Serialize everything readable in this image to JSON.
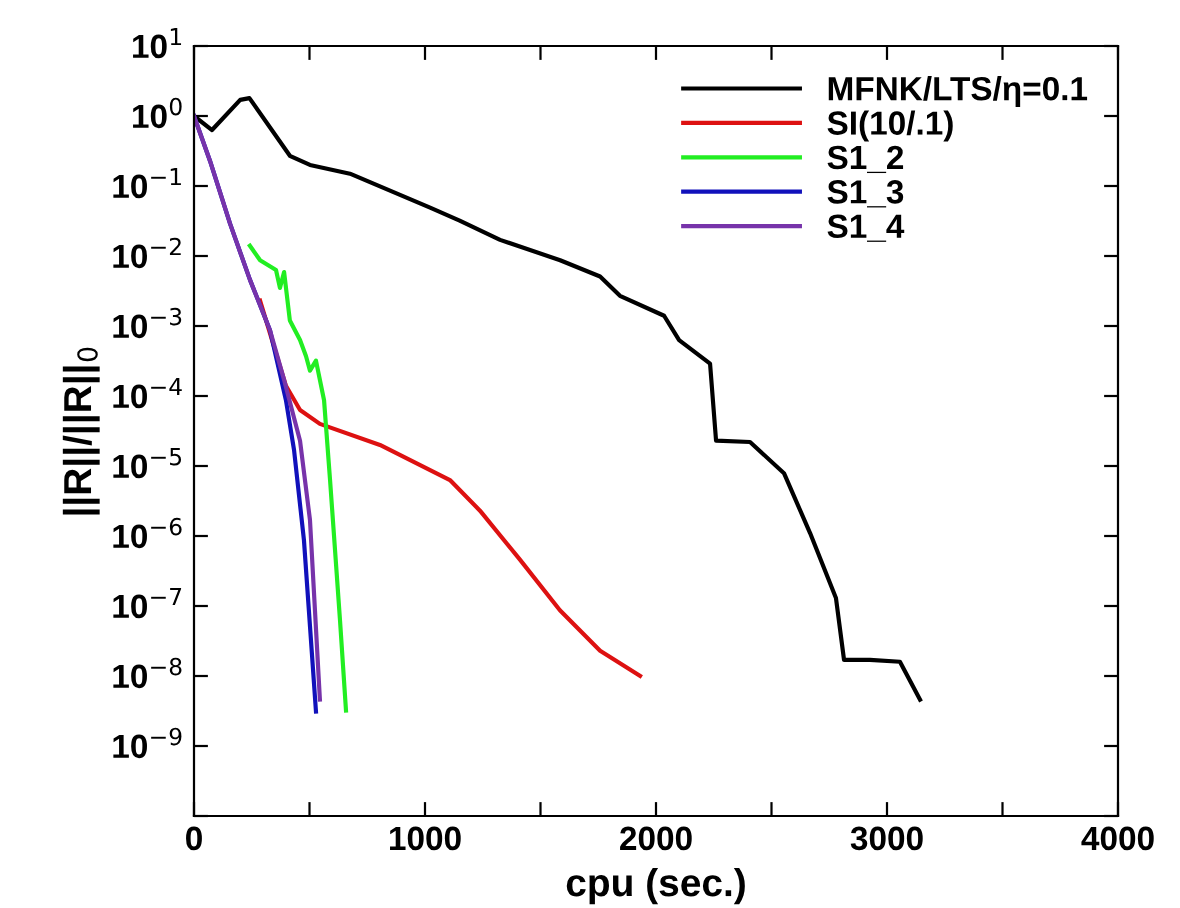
{
  "chart_data": {
    "type": "line",
    "xlabel": "cpu (sec.)",
    "ylabel": "||R||/||R||$_{0}$",
    "log": "y",
    "legend": "top right",
    "grid": false,
    "line_style": "solid",
    "marker": "none",
    "xlim": [
      0,
      4000
    ],
    "xticks": [
      0,
      {
        "value": 500,
        "label": null
      },
      1000,
      {
        "value": 1500,
        "label": null
      },
      2000,
      {
        "value": 2500,
        "label": null
      },
      3000,
      {
        "value": 3500,
        "label": null
      },
      4000
    ],
    "ylim": [
      1e-10,
      10
    ],
    "yticks": [
      {
        "value": 1e-10,
        "label": null
      },
      {
        "value": 1e-09,
        "label": "10$^{−9}$"
      },
      {
        "value": 1e-08,
        "label": "10$^{−8}$"
      },
      {
        "value": 1e-07,
        "label": "10$^{−7}$"
      },
      {
        "value": 1e-06,
        "label": "10$^{−6}$"
      },
      {
        "value": 1e-05,
        "label": "10$^{−5}$"
      },
      {
        "value": 0.0001,
        "label": "10$^{−4}$"
      },
      {
        "value": 0.001,
        "label": "10$^{−3}$"
      },
      {
        "value": 0.01,
        "label": "10$^{−2}$"
      },
      {
        "value": 0.1,
        "label": "10$^{−1}$"
      },
      {
        "value": 1,
        "label": "10$^{0}$"
      },
      {
        "value": 10,
        "label": "10$^{1}$"
      }
    ],
    "series": [
      {
        "name": "MFNK/LTS/η=0.1",
        "color": "#000000",
        "x": [
          0,
          78,
          200,
          240,
          415,
          502,
          675,
          1022,
          1150,
          1325,
          1585,
          1758,
          1844,
          2035,
          2100,
          2234,
          2260,
          2407,
          2554,
          2667,
          2779,
          2814,
          2926,
          3056,
          3143
        ],
        "values": [
          1,
          0.63,
          1.7,
          1.8,
          0.27,
          0.2,
          0.15,
          0.049,
          0.032,
          0.017,
          0.0087,
          0.0051,
          0.0027,
          0.0014,
          0.00063,
          0.00029,
          2.3e-05,
          2.2e-05,
          7.9e-06,
          1.1e-06,
          1.3e-07,
          1.7e-08,
          1.7e-08,
          1.6e-08,
          4.6e-09
        ]
      },
      {
        "name": "SI(10/.1)",
        "color": "#dd1111",
        "x": [
          286,
          398,
          459,
          545,
          805,
          1108,
          1238,
          1411,
          1584,
          1758,
          1931
        ],
        "values": [
          0.0023,
          0.00014,
          6.3e-05,
          4e-05,
          2e-05,
          6.3e-06,
          2.3e-06,
          4.6e-07,
          8.7e-08,
          2.3e-08,
          1e-08
        ]
      },
      {
        "name": "S1_2",
        "color": "#22ee22",
        "x": [
          242,
          286,
          355,
          372,
          390,
          415,
          459,
          485,
          502,
          528,
          563,
          589,
          632,
          658
        ],
        "values": [
          0.014,
          0.0087,
          0.0063,
          0.0035,
          0.0059,
          0.0012,
          0.00063,
          0.00037,
          0.00023,
          0.00032,
          8.7e-05,
          6.3e-06,
          6.3e-08,
          3.2e-09
        ]
      },
      {
        "name": "S1_3",
        "color": "#1111bb",
        "x": [
          0,
          69,
          156,
          242,
          329,
          398,
          433,
          476,
          528
        ],
        "values": [
          1,
          0.23,
          0.029,
          0.0046,
          0.00087,
          8.7e-05,
          1.7e-05,
          8.7e-07,
          3.1e-09
        ]
      },
      {
        "name": "S1_4",
        "color": "#7733aa",
        "x": [
          0,
          69,
          156,
          242,
          329,
          390,
          459,
          502,
          545
        ],
        "values": [
          1,
          0.23,
          0.029,
          0.0046,
          0.00087,
          0.00017,
          2.3e-05,
          1.7e-06,
          4.6e-09
        ]
      }
    ]
  }
}
